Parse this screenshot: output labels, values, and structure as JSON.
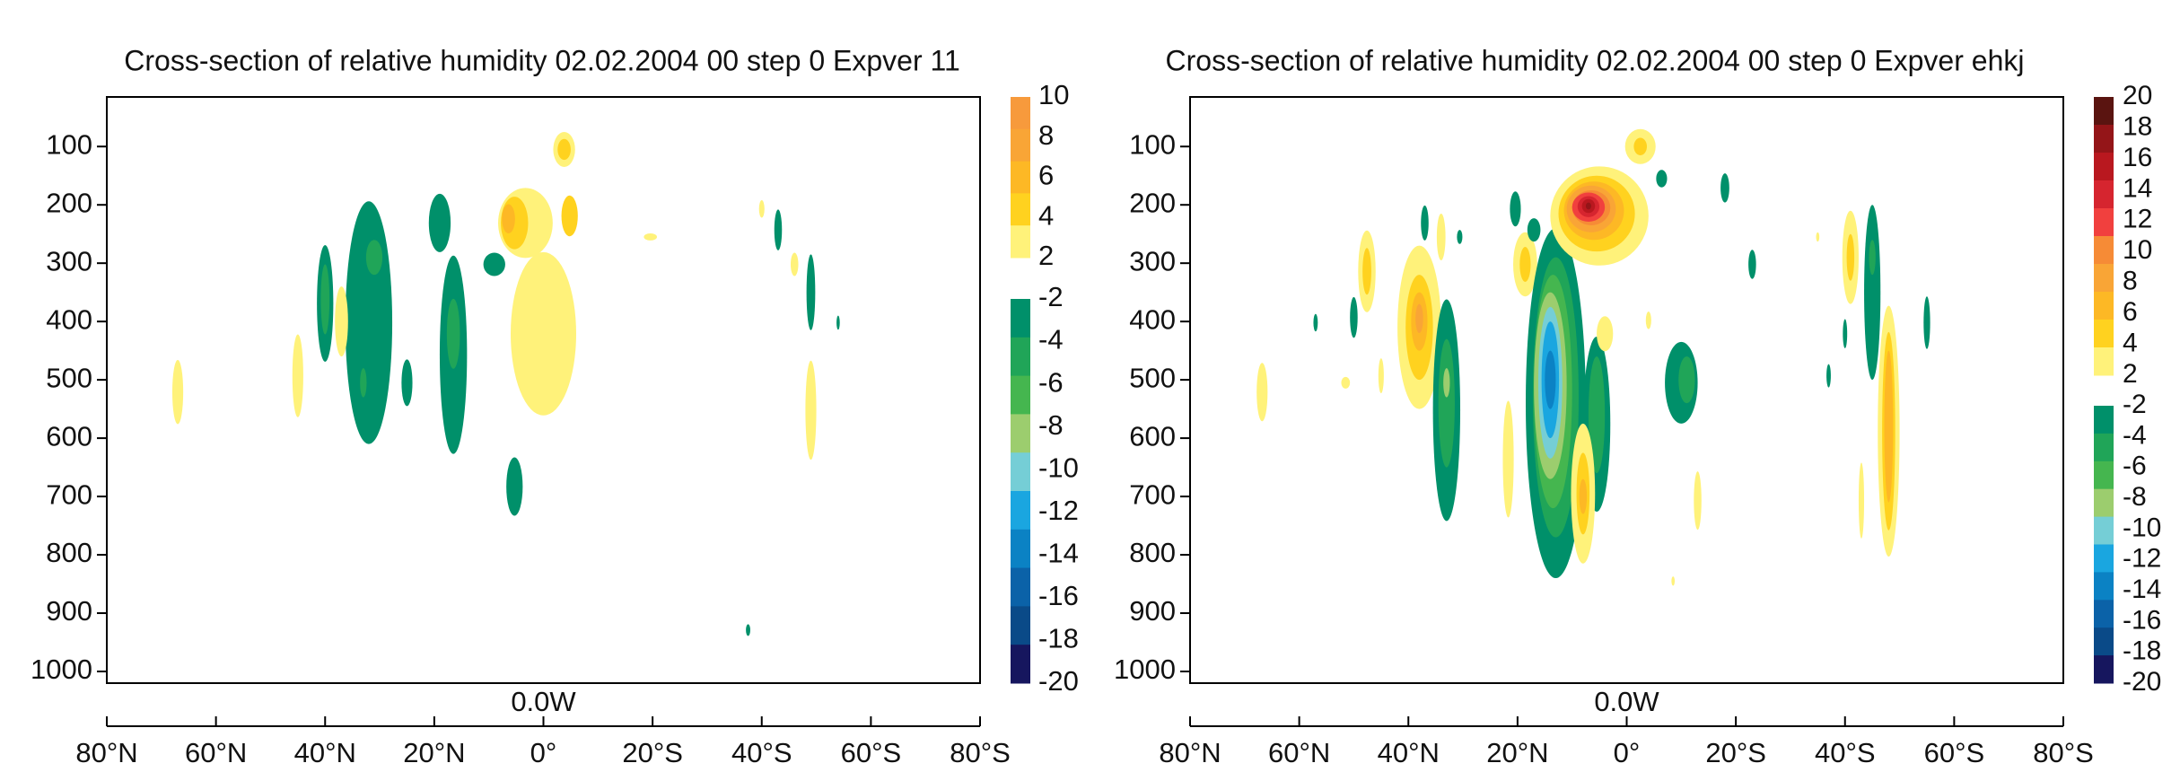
{
  "chart_data": [
    {
      "type": "contour",
      "title": "Cross-section of relative humidity 02.02.2004 00 step 0 Expver 11",
      "xlabel": "0.0W",
      "xlim": [
        80,
        -80
      ],
      "xticks": [
        {
          "value": 80,
          "label": "80°N"
        },
        {
          "value": 60,
          "label": "60°N"
        },
        {
          "value": 40,
          "label": "40°N"
        },
        {
          "value": 20,
          "label": "20°N"
        },
        {
          "value": 0,
          "label": "0°"
        },
        {
          "value": -20,
          "label": "20°S"
        },
        {
          "value": -40,
          "label": "40°S"
        },
        {
          "value": -60,
          "label": "60°S"
        },
        {
          "value": -80,
          "label": "80°S"
        }
      ],
      "ylim": [
        1020,
        15
      ],
      "yticks": [
        100,
        200,
        300,
        400,
        500,
        600,
        700,
        800,
        900,
        1000
      ],
      "colorbar_pos": {
        "levels": [
          10,
          8,
          6,
          4,
          2
        ],
        "colors": [
          "#f79a3c",
          "#f9a536",
          "#fdb825",
          "#ffd21f",
          "#fff27a"
        ]
      },
      "colorbar_neg": {
        "levels": [
          -2,
          -4,
          -6,
          -8,
          -10,
          -12,
          -14,
          -16,
          -18,
          -20
        ],
        "colors": [
          "#00906a",
          "#20a558",
          "#45b64f",
          "#9ccd6e",
          "#75ced6",
          "#1aa6e0",
          "#0b82c4",
          "#0b62a8",
          "#0a4a88",
          "#16165e"
        ]
      },
      "contours": [
        {
          "level": 2,
          "lat": 67,
          "p": 521,
          "dlat": 1,
          "dp": 55
        },
        {
          "level": 2,
          "lat": 45,
          "p": 493,
          "dlat": 1,
          "dp": 71
        },
        {
          "level": -2,
          "lat": 32,
          "p": 402,
          "dlat": 4.3,
          "dp": 208
        },
        {
          "level": -2,
          "lat": 40,
          "p": 369,
          "dlat": 1.5,
          "dp": 100
        },
        {
          "level": 2,
          "lat": 37,
          "p": 400,
          "dlat": 1.2,
          "dp": 60
        },
        {
          "level": -4,
          "lat": 31,
          "p": 290,
          "dlat": 1.5,
          "dp": 30
        },
        {
          "level": -4,
          "lat": 40,
          "p": 362,
          "dlat": 0.8,
          "dp": 60
        },
        {
          "level": -4,
          "lat": 33,
          "p": 505,
          "dlat": 0.6,
          "dp": 25
        },
        {
          "level": -2,
          "lat": 25,
          "p": 505,
          "dlat": 1,
          "dp": 40
        },
        {
          "level": -2,
          "lat": 16.5,
          "p": 457,
          "dlat": 2.5,
          "dp": 170
        },
        {
          "level": -4,
          "lat": 16.5,
          "p": 421,
          "dlat": 1.2,
          "dp": 60
        },
        {
          "level": -2,
          "lat": 19,
          "p": 231,
          "dlat": 2,
          "dp": 50
        },
        {
          "level": -2,
          "lat": 9,
          "p": 302,
          "dlat": 2,
          "dp": 20
        },
        {
          "level": 2,
          "lat": 0,
          "p": 421,
          "dlat": 6,
          "dp": 140
        },
        {
          "level": 2,
          "lat": 3.3,
          "p": 231,
          "dlat": 5,
          "dp": 60
        },
        {
          "level": 4,
          "lat": 5.3,
          "p": 231,
          "dlat": 2.5,
          "dp": 45
        },
        {
          "level": 4,
          "lat": -4.8,
          "p": 219,
          "dlat": 1.5,
          "dp": 35
        },
        {
          "level": 6,
          "lat": 6.4,
          "p": 224,
          "dlat": 1.2,
          "dp": 25
        },
        {
          "level": 2,
          "lat": -3.8,
          "p": 105,
          "dlat": 2,
          "dp": 30
        },
        {
          "level": 4,
          "lat": -3.8,
          "p": 105,
          "dlat": 1.2,
          "dp": 18
        },
        {
          "level": -2,
          "lat": 5.3,
          "p": 683,
          "dlat": 1.5,
          "dp": 50
        },
        {
          "level": 2,
          "lat": -19.6,
          "p": 255,
          "dlat": 1.2,
          "dp": 6
        },
        {
          "level": 2,
          "lat": -40,
          "p": 207,
          "dlat": 0.5,
          "dp": 15
        },
        {
          "level": -2,
          "lat": -43,
          "p": 243,
          "dlat": 0.7,
          "dp": 35
        },
        {
          "level": 2,
          "lat": -46,
          "p": 302,
          "dlat": 0.7,
          "dp": 20
        },
        {
          "level": -2,
          "lat": -49,
          "p": 350,
          "dlat": 0.8,
          "dp": 65
        },
        {
          "level": 2,
          "lat": -49,
          "p": 552,
          "dlat": 1,
          "dp": 85
        },
        {
          "level": -2,
          "lat": -54,
          "p": 402,
          "dlat": 0.3,
          "dp": 12
        },
        {
          "level": -2,
          "lat": -37.5,
          "p": 929,
          "dlat": 0.4,
          "dp": 10
        }
      ]
    },
    {
      "type": "contour",
      "title": "Cross-section of relative humidity 02.02.2004 00 step 0 Expver ehkj",
      "xlabel": "0.0W",
      "xlim": [
        80,
        -80
      ],
      "xticks": [
        {
          "value": 80,
          "label": "80°N"
        },
        {
          "value": 60,
          "label": "60°N"
        },
        {
          "value": 40,
          "label": "40°N"
        },
        {
          "value": 20,
          "label": "20°N"
        },
        {
          "value": 0,
          "label": "0°"
        },
        {
          "value": -20,
          "label": "20°S"
        },
        {
          "value": -40,
          "label": "40°S"
        },
        {
          "value": -60,
          "label": "60°S"
        },
        {
          "value": -80,
          "label": "80°S"
        }
      ],
      "ylim": [
        1020,
        15
      ],
      "yticks": [
        100,
        200,
        300,
        400,
        500,
        600,
        700,
        800,
        900,
        1000
      ],
      "colorbar_pos": {
        "levels": [
          20,
          18,
          16,
          14,
          12,
          10,
          8,
          6,
          4,
          2
        ],
        "colors": [
          "#5a1410",
          "#941518",
          "#b9181f",
          "#d6252f",
          "#f1403e",
          "#f68b36",
          "#f9a536",
          "#fdb825",
          "#ffd21f",
          "#fff27a"
        ]
      },
      "colorbar_neg": {
        "levels": [
          -2,
          -4,
          -6,
          -8,
          -10,
          -12,
          -14,
          -16,
          -18,
          -20
        ],
        "colors": [
          "#00906a",
          "#20a558",
          "#45b64f",
          "#9ccd6e",
          "#75ced6",
          "#1aa6e0",
          "#0b82c4",
          "#0b62a8",
          "#0a4a88",
          "#16165e"
        ]
      },
      "contours": [
        {
          "level": 2,
          "lat": 66.8,
          "p": 521,
          "dlat": 1,
          "dp": 50
        },
        {
          "level": 2,
          "lat": 51.5,
          "p": 505,
          "dlat": 0.8,
          "dp": 10
        },
        {
          "level": -2,
          "lat": 57,
          "p": 402,
          "dlat": 0.4,
          "dp": 15
        },
        {
          "level": 2,
          "lat": 47.6,
          "p": 314,
          "dlat": 1.6,
          "dp": 70
        },
        {
          "level": 4,
          "lat": 47.6,
          "p": 314,
          "dlat": 0.8,
          "dp": 40
        },
        {
          "level": -2,
          "lat": 50,
          "p": 393,
          "dlat": 0.7,
          "dp": 35
        },
        {
          "level": 2,
          "lat": 45,
          "p": 493,
          "dlat": 0.5,
          "dp": 30
        },
        {
          "level": 2,
          "lat": 38,
          "p": 410,
          "dlat": 4,
          "dp": 140
        },
        {
          "level": 4,
          "lat": 38,
          "p": 410,
          "dlat": 2.5,
          "dp": 90
        },
        {
          "level": 6,
          "lat": 38,
          "p": 400,
          "dlat": 1.5,
          "dp": 50
        },
        {
          "level": 8,
          "lat": 38,
          "p": 395,
          "dlat": 0.7,
          "dp": 25
        },
        {
          "level": -2,
          "lat": 37,
          "p": 231,
          "dlat": 0.7,
          "dp": 30
        },
        {
          "level": 2,
          "lat": 34,
          "p": 255,
          "dlat": 0.8,
          "dp": 40
        },
        {
          "level": -2,
          "lat": 33,
          "p": 552,
          "dlat": 2.5,
          "dp": 190
        },
        {
          "level": -4,
          "lat": 33,
          "p": 540,
          "dlat": 1.5,
          "dp": 110
        },
        {
          "level": -8,
          "lat": 33,
          "p": 505,
          "dlat": 0.6,
          "dp": 25
        },
        {
          "level": -2,
          "lat": 30.6,
          "p": 255,
          "dlat": 0.5,
          "dp": 12
        },
        {
          "level": 2,
          "lat": 21.7,
          "p": 636,
          "dlat": 1,
          "dp": 100
        },
        {
          "level": 2,
          "lat": 18.6,
          "p": 302,
          "dlat": 2.2,
          "dp": 55
        },
        {
          "level": 4,
          "lat": 18.6,
          "p": 302,
          "dlat": 1,
          "dp": 30
        },
        {
          "level": -2,
          "lat": 20.4,
          "p": 207,
          "dlat": 1,
          "dp": 30
        },
        {
          "level": -2,
          "lat": 17,
          "p": 243,
          "dlat": 1.2,
          "dp": 20
        },
        {
          "level": -2,
          "lat": 13,
          "p": 540,
          "dlat": 5.5,
          "dp": 300
        },
        {
          "level": -4,
          "lat": 13,
          "p": 530,
          "dlat": 4.2,
          "dp": 240
        },
        {
          "level": -6,
          "lat": 13.5,
          "p": 520,
          "dlat": 3.5,
          "dp": 200
        },
        {
          "level": -8,
          "lat": 14,
          "p": 510,
          "dlat": 3,
          "dp": 160
        },
        {
          "level": -10,
          "lat": 14,
          "p": 505,
          "dlat": 2.2,
          "dp": 130
        },
        {
          "level": -12,
          "lat": 14,
          "p": 500,
          "dlat": 1.6,
          "dp": 100
        },
        {
          "level": -14,
          "lat": 14,
          "p": 500,
          "dlat": 1,
          "dp": 50
        },
        {
          "level": -2,
          "lat": 5.5,
          "p": 576,
          "dlat": 2.5,
          "dp": 150
        },
        {
          "level": -4,
          "lat": 5.5,
          "p": 560,
          "dlat": 1.5,
          "dp": 100
        },
        {
          "level": 2,
          "lat": 8,
          "p": 695,
          "dlat": 2.2,
          "dp": 120
        },
        {
          "level": 4,
          "lat": 8,
          "p": 695,
          "dlat": 1.2,
          "dp": 70
        },
        {
          "level": 6,
          "lat": 8,
          "p": 700,
          "dlat": 0.7,
          "dp": 30
        },
        {
          "level": 2,
          "lat": 4,
          "p": 421,
          "dlat": 1.5,
          "dp": 30
        },
        {
          "level": 2,
          "lat": 5,
          "p": 219,
          "dlat": 9,
          "dp": 85
        },
        {
          "level": 4,
          "lat": 5.5,
          "p": 215,
          "dlat": 7,
          "dp": 65
        },
        {
          "level": 6,
          "lat": 6,
          "p": 210,
          "dlat": 5.5,
          "dp": 50
        },
        {
          "level": 8,
          "lat": 6.5,
          "p": 207,
          "dlat": 4.5,
          "dp": 40
        },
        {
          "level": 10,
          "lat": 6.5,
          "p": 205,
          "dlat": 3.5,
          "dp": 30
        },
        {
          "level": 12,
          "lat": 7,
          "p": 204,
          "dlat": 3,
          "dp": 25
        },
        {
          "level": 14,
          "lat": 7,
          "p": 203,
          "dlat": 2,
          "dp": 18
        },
        {
          "level": 16,
          "lat": 7,
          "p": 202,
          "dlat": 1.2,
          "dp": 12
        },
        {
          "level": 18,
          "lat": 7,
          "p": 202,
          "dlat": 0.5,
          "dp": 6
        },
        {
          "level": 2,
          "lat": -2.5,
          "p": 100,
          "dlat": 2.8,
          "dp": 30
        },
        {
          "level": 4,
          "lat": -2.5,
          "p": 100,
          "dlat": 1.2,
          "dp": 15
        },
        {
          "level": -2,
          "lat": -6.4,
          "p": 155,
          "dlat": 1,
          "dp": 15
        },
        {
          "level": 2,
          "lat": -4,
          "p": 398,
          "dlat": 0.5,
          "dp": 15
        },
        {
          "level": -2,
          "lat": -10,
          "p": 505,
          "dlat": 3,
          "dp": 70
        },
        {
          "level": -4,
          "lat": -11,
          "p": 500,
          "dlat": 1.5,
          "dp": 40
        },
        {
          "level": 2,
          "lat": -13,
          "p": 707,
          "dlat": 0.7,
          "dp": 50
        },
        {
          "level": 2,
          "lat": -8.5,
          "p": 845,
          "dlat": 0.3,
          "dp": 8
        },
        {
          "level": -2,
          "lat": -18,
          "p": 171,
          "dlat": 0.8,
          "dp": 25
        },
        {
          "level": -2,
          "lat": -23,
          "p": 302,
          "dlat": 0.7,
          "dp": 25
        },
        {
          "level": 2,
          "lat": -35,
          "p": 255,
          "dlat": 0.3,
          "dp": 8
        },
        {
          "level": 2,
          "lat": -41,
          "p": 290,
          "dlat": 1.5,
          "dp": 80
        },
        {
          "level": 4,
          "lat": -41,
          "p": 290,
          "dlat": 0.7,
          "dp": 40
        },
        {
          "level": -2,
          "lat": -45,
          "p": 350,
          "dlat": 1.5,
          "dp": 150
        },
        {
          "level": -4,
          "lat": -45,
          "p": 290,
          "dlat": 0.6,
          "dp": 30
        },
        {
          "level": -2,
          "lat": -37,
          "p": 493,
          "dlat": 0.4,
          "dp": 20
        },
        {
          "level": -2,
          "lat": -40,
          "p": 421,
          "dlat": 0.4,
          "dp": 25
        },
        {
          "level": 2,
          "lat": -43,
          "p": 707,
          "dlat": 0.5,
          "dp": 65
        },
        {
          "level": 2,
          "lat": -48,
          "p": 588,
          "dlat": 2,
          "dp": 215
        },
        {
          "level": 4,
          "lat": -48,
          "p": 588,
          "dlat": 1.2,
          "dp": 170
        },
        {
          "level": 6,
          "lat": -48,
          "p": 580,
          "dlat": 0.8,
          "dp": 130
        },
        {
          "level": -2,
          "lat": -55,
          "p": 402,
          "dlat": 0.6,
          "dp": 45
        }
      ]
    }
  ]
}
